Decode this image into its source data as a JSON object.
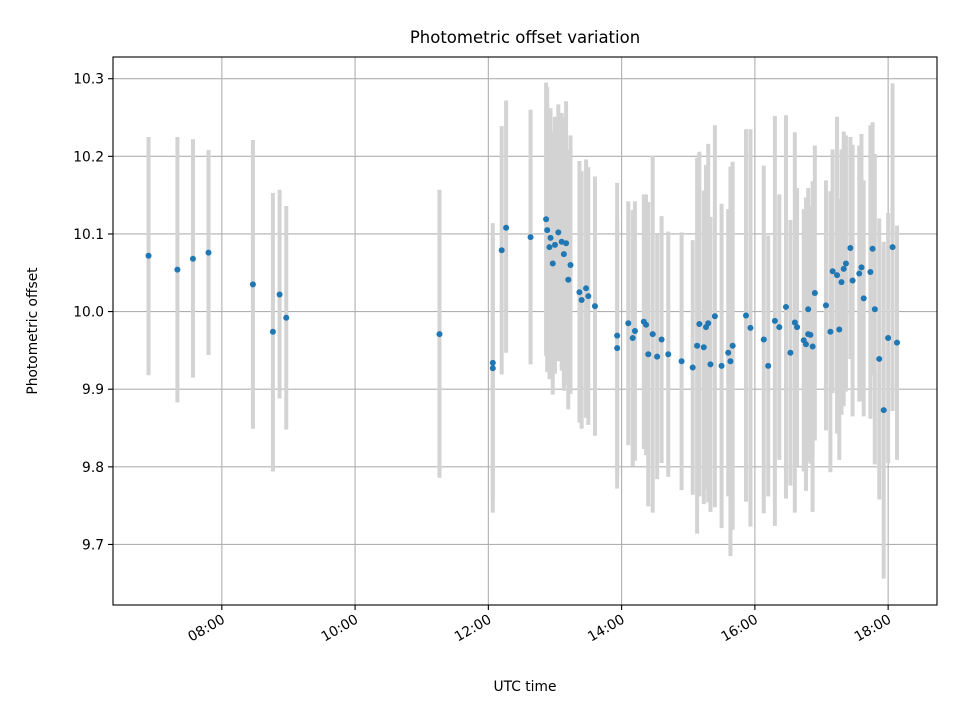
{
  "chart_data": {
    "type": "scatter",
    "title": "Photometric offset variation",
    "xlabel": "UTC time",
    "ylabel": "Photometric offset",
    "x_tick_labels": [
      "08:00",
      "10:00",
      "12:00",
      "14:00",
      "16:00",
      "18:00"
    ],
    "y_tick_labels": [
      "9.7",
      "9.8",
      "9.9",
      "10.0",
      "10.1",
      "10.2",
      "10.3"
    ],
    "y_ticks": [
      9.7,
      9.8,
      9.9,
      10.0,
      10.1,
      10.2,
      10.3
    ],
    "x_ticks": [
      "08:00",
      "10:00",
      "12:00",
      "14:00",
      "16:00",
      "18:00"
    ],
    "xlim": [
      "06:22",
      "18:44"
    ],
    "ylim": [
      9.622,
      10.328
    ],
    "grid": true,
    "colors": {
      "points": "#1f77b4",
      "errorbars": "#d3d3d3",
      "grid": "#b0b0b0"
    },
    "series": [
      {
        "x": [
          "06:54",
          "07:20",
          "07:34",
          "07:48",
          "08:28",
          "08:46",
          "08:52",
          "08:58",
          "11:16",
          "12:04",
          "12:04",
          "12:12",
          "12:16",
          "12:38",
          "12:52",
          "12:53",
          "12:55",
          "12:56",
          "12:58",
          "13:00",
          "13:03",
          "13:06",
          "13:08",
          "13:10",
          "13:12",
          "13:14",
          "13:22",
          "13:24",
          "13:28",
          "13:30",
          "13:36",
          "13:56",
          "13:56",
          "14:06",
          "14:10",
          "14:12",
          "14:20",
          "14:22",
          "14:24",
          "14:28",
          "14:32",
          "14:36",
          "14:42",
          "14:54",
          "15:04",
          "15:08",
          "15:10",
          "15:14",
          "15:16",
          "15:18",
          "15:20",
          "15:24",
          "15:30",
          "15:36",
          "15:38",
          "15:40",
          "15:52",
          "15:56",
          "16:08",
          "16:12",
          "16:18",
          "16:22",
          "16:28",
          "16:32",
          "16:36",
          "16:38",
          "16:44",
          "16:46",
          "16:48",
          "16:48",
          "16:50",
          "16:52",
          "16:54",
          "17:04",
          "17:08",
          "17:10",
          "17:14",
          "17:16",
          "17:18",
          "17:20",
          "17:22",
          "17:26",
          "17:28",
          "17:34",
          "17:36",
          "17:38",
          "17:44",
          "17:46",
          "17:48",
          "17:52",
          "17:56",
          "18:00",
          "18:04",
          "18:08"
        ],
        "y": [
          10.072,
          10.054,
          10.068,
          10.076,
          10.035,
          9.974,
          10.022,
          9.992,
          9.971,
          9.934,
          9.927,
          10.079,
          10.108,
          10.096,
          10.119,
          10.105,
          10.083,
          10.095,
          10.062,
          10.086,
          10.102,
          10.09,
          10.074,
          10.088,
          10.041,
          10.06,
          10.025,
          10.015,
          10.03,
          10.02,
          10.007,
          9.969,
          9.953,
          9.985,
          9.966,
          9.975,
          9.987,
          9.983,
          9.945,
          9.971,
          9.942,
          9.964,
          9.945,
          9.936,
          9.928,
          9.956,
          9.984,
          9.954,
          9.98,
          9.985,
          9.932,
          9.994,
          9.93,
          9.947,
          9.936,
          9.956,
          9.995,
          9.979,
          9.964,
          9.93,
          9.988,
          9.98,
          10.006,
          9.947,
          9.986,
          9.98,
          9.963,
          9.958,
          10.003,
          9.971,
          9.97,
          9.955,
          10.024,
          10.008,
          9.974,
          10.052,
          10.047,
          9.977,
          10.038,
          10.055,
          10.062,
          10.082,
          10.04,
          10.049,
          10.057,
          10.017,
          10.051,
          10.081,
          10.003,
          9.939,
          9.873,
          9.966,
          10.083,
          9.96
        ],
        "yerr_low": [
          9.918,
          9.883,
          9.915,
          9.944,
          9.849,
          9.794,
          9.888,
          9.848,
          9.786,
          9.741,
          9.759,
          9.919,
          9.947,
          9.932,
          9.943,
          9.922,
          9.913,
          9.929,
          9.893,
          9.92,
          9.936,
          9.924,
          9.898,
          9.905,
          9.874,
          9.894,
          9.857,
          9.849,
          9.863,
          9.854,
          9.84,
          9.772,
          9.789,
          9.828,
          9.801,
          9.808,
          9.823,
          9.815,
          9.749,
          9.741,
          9.784,
          9.805,
          9.787,
          9.77,
          9.764,
          9.714,
          9.762,
          9.752,
          9.771,
          9.754,
          9.742,
          9.748,
          9.721,
          9.762,
          9.685,
          9.719,
          9.755,
          9.723,
          9.74,
          9.762,
          9.724,
          9.809,
          9.759,
          9.776,
          9.741,
          9.801,
          9.794,
          9.769,
          9.847,
          9.807,
          9.804,
          9.742,
          9.834,
          9.847,
          9.793,
          9.895,
          9.843,
          9.809,
          9.867,
          9.878,
          9.897,
          9.939,
          9.865,
          9.884,
          9.885,
          9.865,
          9.862,
          9.918,
          9.803,
          9.758,
          9.656,
          9.805,
          9.872,
          9.809
        ],
        "yerr_high": [
          10.225,
          10.225,
          10.222,
          10.208,
          10.221,
          10.153,
          10.157,
          10.136,
          10.157,
          10.114,
          10.095,
          10.239,
          10.272,
          10.26,
          10.295,
          10.289,
          10.252,
          10.262,
          10.232,
          10.251,
          10.267,
          10.256,
          10.25,
          10.271,
          10.208,
          10.227,
          10.194,
          10.181,
          10.196,
          10.186,
          10.174,
          10.166,
          10.117,
          10.142,
          10.131,
          10.142,
          10.151,
          10.151,
          10.141,
          10.201,
          10.1,
          10.123,
          10.103,
          10.102,
          10.092,
          10.198,
          10.206,
          10.156,
          10.189,
          10.216,
          10.122,
          10.24,
          10.139,
          10.132,
          10.187,
          10.193,
          10.235,
          10.235,
          10.188,
          10.098,
          10.252,
          10.151,
          10.253,
          10.118,
          10.231,
          10.159,
          10.132,
          10.147,
          10.159,
          10.135,
          10.136,
          10.168,
          10.214,
          10.169,
          10.155,
          10.209,
          10.251,
          10.145,
          10.209,
          10.232,
          10.227,
          10.225,
          10.215,
          10.214,
          10.229,
          10.169,
          10.24,
          10.244,
          10.203,
          10.12,
          10.09,
          10.127,
          10.294,
          10.111
        ]
      }
    ]
  }
}
